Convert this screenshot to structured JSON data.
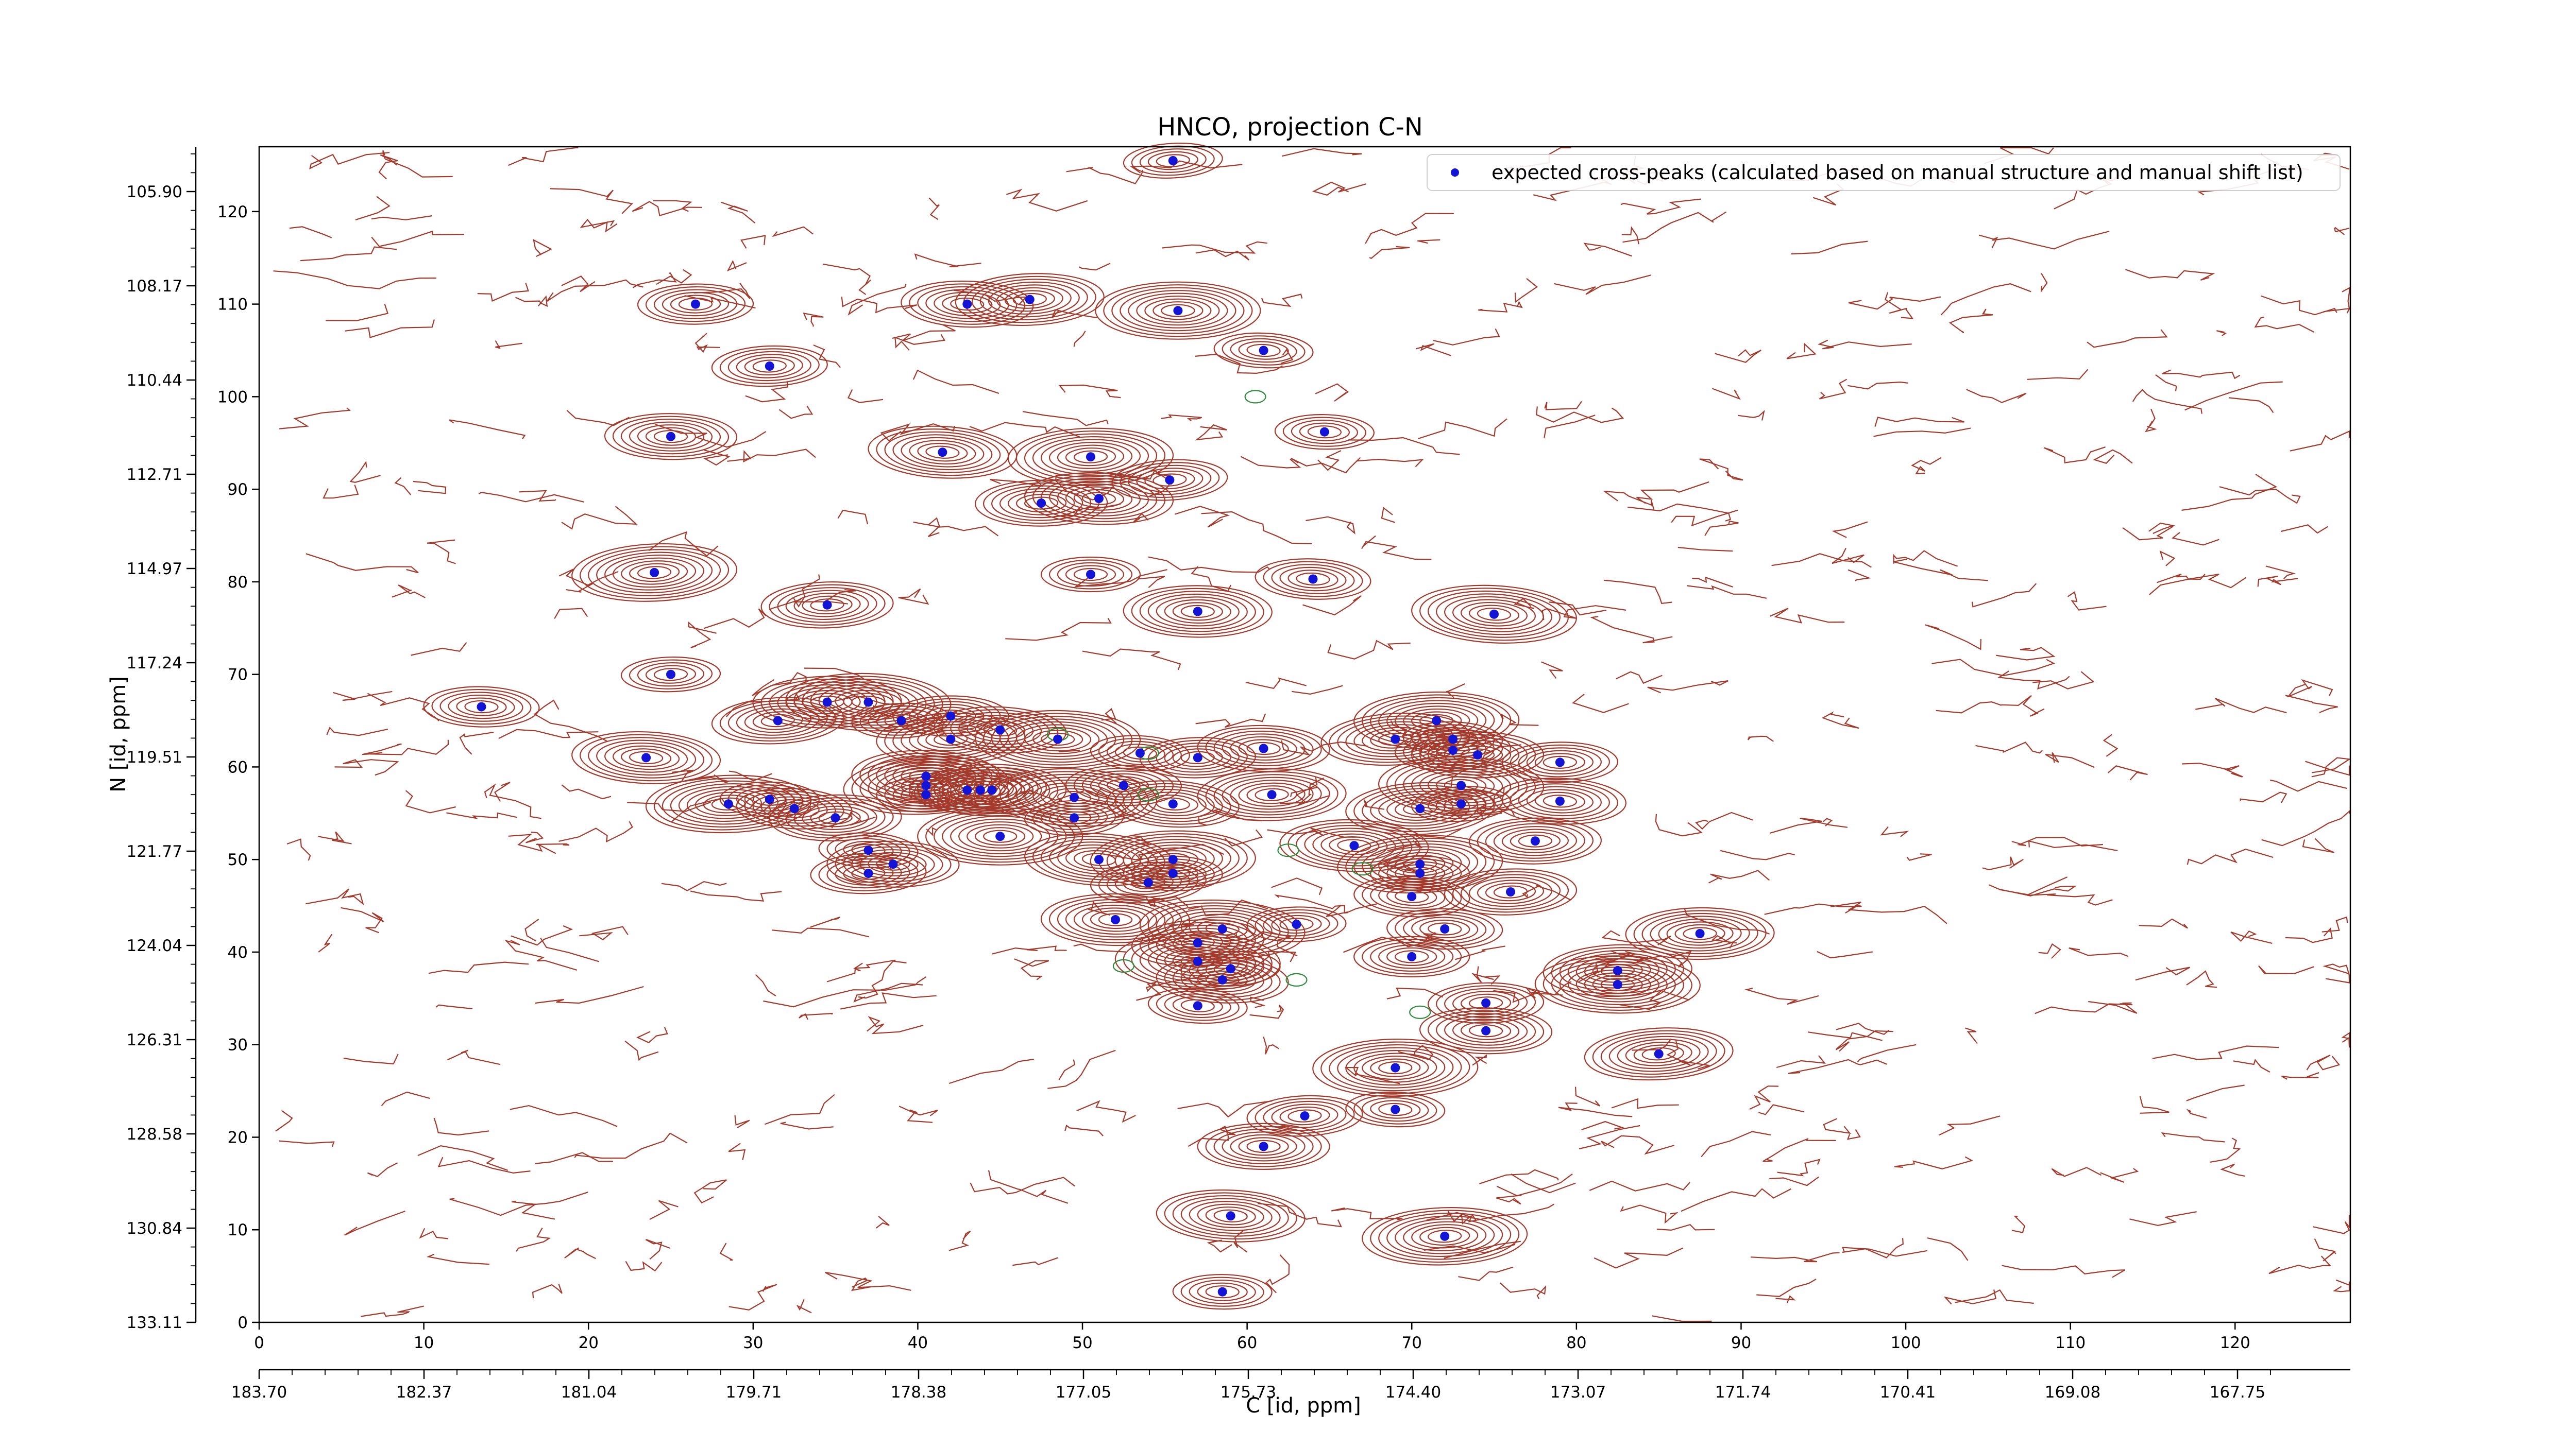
{
  "chart_data": {
    "type": "scatter",
    "title": "HNCO, projection C-N",
    "xlabel": "C [id, ppm]",
    "ylabel": "N [id, ppm]",
    "xlim": [
      0,
      127
    ],
    "ylim": [
      0,
      127
    ],
    "x_ticks": [
      0,
      10,
      20,
      30,
      40,
      50,
      60,
      70,
      80,
      90,
      100,
      110,
      120
    ],
    "y_ticks": [
      0,
      10,
      20,
      30,
      40,
      50,
      60,
      70,
      80,
      90,
      100,
      110,
      120
    ],
    "secondary_x_ticks": [
      "183.70",
      "182.37",
      "181.04",
      "179.71",
      "178.38",
      "177.05",
      "175.73",
      "174.40",
      "173.07",
      "171.74",
      "170.41",
      "169.08",
      "167.75"
    ],
    "secondary_y_ticks": [
      "133.11",
      "130.84",
      "128.58",
      "126.31",
      "124.04",
      "121.77",
      "119.51",
      "117.24",
      "114.97",
      "112.71",
      "110.44",
      "108.17",
      "105.90"
    ],
    "legend_position": "top-right",
    "colors": {
      "contour": "#a33a2c",
      "contour_negative": "#2e8b3c",
      "peak": "#1414d6"
    },
    "series": [
      {
        "name": "expected cross-peaks (calculated based on manual structure and manual shift list)",
        "points": [
          [
            55.5,
            125.5
          ],
          [
            26.5,
            110
          ],
          [
            43,
            110
          ],
          [
            46.8,
            110.5
          ],
          [
            55.8,
            109.3
          ],
          [
            61,
            105
          ],
          [
            31,
            103.3
          ],
          [
            25,
            95.7
          ],
          [
            41.5,
            94
          ],
          [
            50.5,
            93.5
          ],
          [
            64.7,
            96.2
          ],
          [
            55.3,
            91
          ],
          [
            47.5,
            88.5
          ],
          [
            51,
            89
          ],
          [
            24,
            81
          ],
          [
            50.5,
            80.8
          ],
          [
            64,
            80.3
          ],
          [
            34.5,
            77.5
          ],
          [
            57,
            76.8
          ],
          [
            75,
            76.5
          ],
          [
            25,
            70
          ],
          [
            13.5,
            66.5
          ],
          [
            31.5,
            65
          ],
          [
            34.5,
            67
          ],
          [
            37,
            67
          ],
          [
            39,
            65
          ],
          [
            42,
            65.5
          ],
          [
            45,
            64
          ],
          [
            42,
            63
          ],
          [
            48.5,
            63
          ],
          [
            53.5,
            61.5
          ],
          [
            57,
            61
          ],
          [
            61,
            62
          ],
          [
            69,
            63
          ],
          [
            71.5,
            65
          ],
          [
            72.5,
            63
          ],
          [
            72.5,
            61.8
          ],
          [
            74,
            61.3
          ],
          [
            23.5,
            61
          ],
          [
            28.5,
            56
          ],
          [
            31,
            56.5
          ],
          [
            32.5,
            55.5
          ],
          [
            35,
            54.5
          ],
          [
            40.5,
            59
          ],
          [
            40.5,
            58
          ],
          [
            40.5,
            57
          ],
          [
            43,
            57.5
          ],
          [
            43.8,
            57.5
          ],
          [
            44.5,
            57.5
          ],
          [
            49.5,
            56.7
          ],
          [
            49.5,
            54.5
          ],
          [
            52.5,
            58
          ],
          [
            55.5,
            56
          ],
          [
            61.5,
            57
          ],
          [
            73,
            58
          ],
          [
            73,
            56
          ],
          [
            79,
            60.5
          ],
          [
            79,
            56.3
          ],
          [
            70.5,
            55.5
          ],
          [
            45,
            52.5
          ],
          [
            37,
            51
          ],
          [
            37,
            48.5
          ],
          [
            38.5,
            49.5
          ],
          [
            51,
            50
          ],
          [
            55.5,
            50
          ],
          [
            55.5,
            48.5
          ],
          [
            54,
            47.5
          ],
          [
            77.5,
            52
          ],
          [
            66.5,
            51.5
          ],
          [
            70.5,
            49.5
          ],
          [
            70.5,
            48.5
          ],
          [
            70,
            46
          ],
          [
            76,
            46.5
          ],
          [
            52,
            43.5
          ],
          [
            58.5,
            42.5
          ],
          [
            63,
            43
          ],
          [
            72,
            42.5
          ],
          [
            57,
            41
          ],
          [
            87.5,
            42
          ],
          [
            57,
            39
          ],
          [
            59,
            38.2
          ],
          [
            70,
            39.5
          ],
          [
            58.5,
            37
          ],
          [
            82.5,
            38
          ],
          [
            82.5,
            36.5
          ],
          [
            57,
            34.2
          ],
          [
            74.5,
            34.5
          ],
          [
            74.5,
            31.5
          ],
          [
            85,
            29
          ],
          [
            69,
            27.5
          ],
          [
            69,
            23
          ],
          [
            63.5,
            22.3
          ],
          [
            61,
            19
          ],
          [
            59,
            11.5
          ],
          [
            72,
            9.3
          ],
          [
            58.5,
            3.3
          ]
        ]
      }
    ]
  }
}
